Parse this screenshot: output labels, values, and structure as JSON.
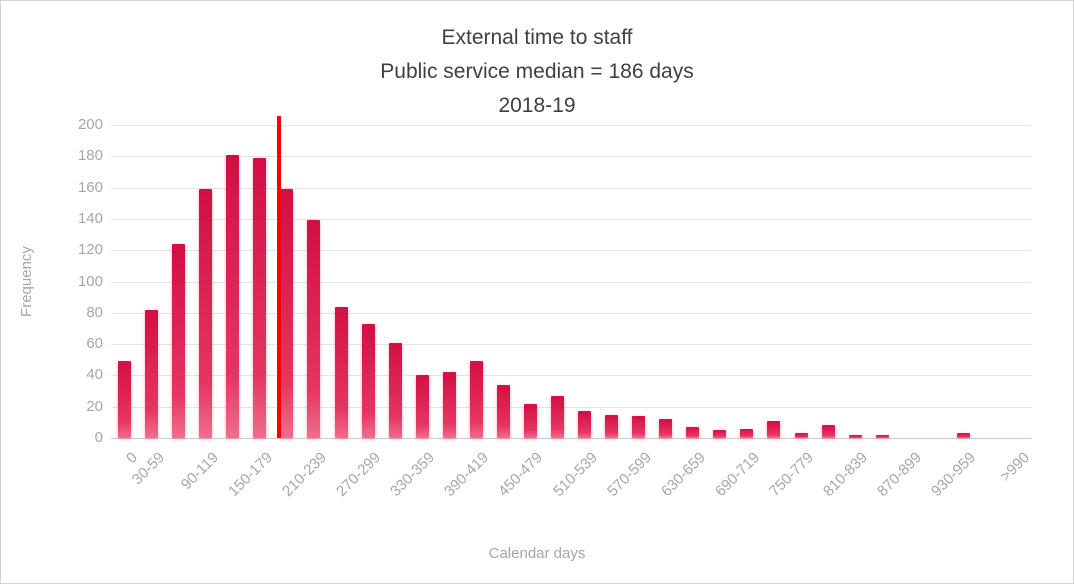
{
  "chart_data": {
    "type": "bar",
    "title_lines": [
      "External time to staff",
      "Public service median = 186 days",
      "2018-19"
    ],
    "xlabel": "Calendar days",
    "ylabel": "Frequency",
    "ylim": [
      0,
      200
    ],
    "y_ticks": [
      0,
      20,
      40,
      60,
      80,
      100,
      120,
      140,
      160,
      180,
      200
    ],
    "bin_width_days": 30,
    "categories": [
      "0",
      "30-59",
      "60-89",
      "90-119",
      "120-149",
      "150-179",
      "180-209",
      "210-239",
      "240-269",
      "270-299",
      "300-329",
      "330-359",
      "360-389",
      "390-419",
      "420-449",
      "450-479",
      "480-509",
      "510-539",
      "540-569",
      "570-599",
      "600-629",
      "630-659",
      "660-689",
      "690-719",
      "720-749",
      "750-779",
      "780-809",
      "810-839",
      "840-869",
      "870-899",
      "900-929",
      "930-959",
      "960-989",
      ">990"
    ],
    "values": [
      49,
      82,
      124,
      159,
      181,
      179,
      159,
      139,
      84,
      73,
      61,
      40,
      42,
      49,
      34,
      22,
      27,
      17,
      15,
      14,
      12,
      7,
      5,
      6,
      11,
      3,
      8,
      2,
      2,
      0,
      0,
      3,
      0,
      0
    ],
    "x_tick_indices": [
      0,
      1,
      3,
      5,
      7,
      9,
      11,
      13,
      15,
      17,
      19,
      21,
      23,
      25,
      27,
      29,
      31,
      33
    ],
    "median_line": {
      "label": "Public service median",
      "value_days": 186,
      "color": "#ff0000"
    },
    "grid": "on",
    "legend": "none",
    "colors": {
      "bar_top": "#d30e44",
      "bar_mid": "#e63560",
      "bar_bottom": "#ef6e8d",
      "axis_text": "#a6a6a6",
      "grid": "#e3e3e3",
      "baseline": "#c9c9c9",
      "title": "#404040"
    }
  }
}
